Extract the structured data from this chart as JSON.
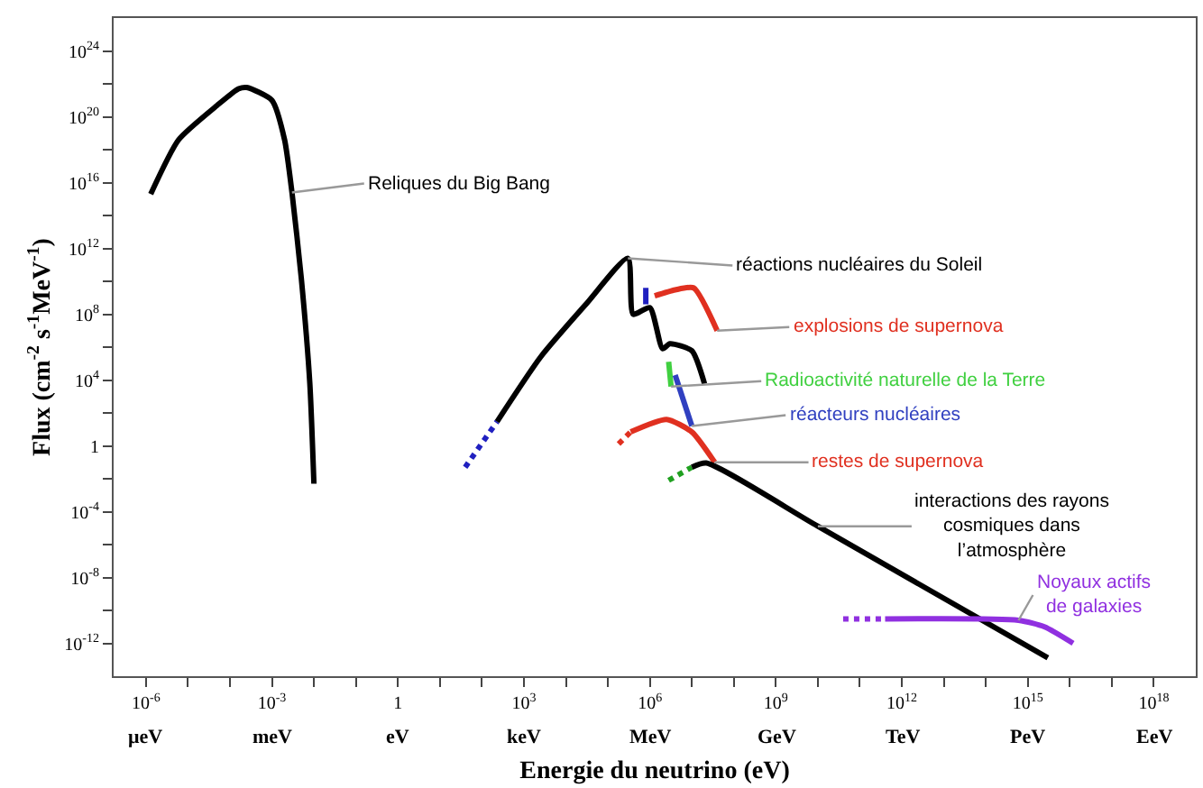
{
  "chart_data": {
    "type": "line",
    "xlabel": "Energie du neutrino (eV)",
    "ylabel": "Flux (cm$^{-2}$ s$^{-1}$MeV$^{-1}$)",
    "log": "xy",
    "xlim": [
      1.7e-07,
      1e+19
    ],
    "ylim": [
      1e-14,
      1e+26
    ],
    "xticks": [
      {
        "value": 1e-06,
        "label": "10$^{-6}$"
      },
      {
        "value": 1e-05,
        "label": null
      },
      {
        "value": 0.0001,
        "label": null
      },
      {
        "value": 0.001,
        "label": "10$^{-3}$"
      },
      {
        "value": 0.01,
        "label": null
      },
      {
        "value": 0.1,
        "label": null
      },
      1,
      {
        "value": 10,
        "label": null
      },
      {
        "value": 100,
        "label": null
      },
      {
        "value": 1000.0,
        "label": "10$^{3}$"
      },
      {
        "value": 10000.0,
        "label": null
      },
      {
        "value": 100000.0,
        "label": null
      },
      {
        "value": 1000000.0,
        "label": "10$^{6}$"
      },
      {
        "value": 10000000.0,
        "label": null
      },
      {
        "value": 100000000.0,
        "label": null
      },
      {
        "value": 1000000000.0,
        "label": "10$^{9}$"
      },
      {
        "value": 10000000000.0,
        "label": null
      },
      {
        "value": 100000000000.0,
        "label": null
      },
      {
        "value": 1000000000000.0,
        "label": "10$^{12}$"
      },
      {
        "value": 10000000000000.0,
        "label": null
      },
      {
        "value": 100000000000000.0,
        "label": null
      },
      {
        "value": 1000000000000000.0,
        "label": "10$^{15}$"
      },
      {
        "value": 1e+16,
        "label": null
      },
      {
        "value": 1e+17,
        "label": null
      },
      {
        "value": 1e+18,
        "label": "10$^{18}$"
      }
    ],
    "annotations": [
      "μeV",
      "meV",
      "eV",
      "keV",
      "MeV",
      "GeV",
      "TeV",
      "PeV",
      "EeV"
    ],
    "yticks": [
      {
        "value": 1e-12,
        "label": "10$^{-12}$"
      },
      {
        "value": 1e-10,
        "label": null
      },
      {
        "value": 1e-08,
        "label": "10$^{-8}$"
      },
      {
        "value": 1e-06,
        "label": null
      },
      {
        "value": 0.0001,
        "label": "10$^{-4}$"
      },
      {
        "value": 0.01,
        "label": null
      },
      {
        "value": 1,
        "label": "1"
      },
      {
        "value": 100,
        "label": null
      },
      {
        "value": 10000.0,
        "label": "10$^{4}$"
      },
      {
        "value": 1000000.0,
        "label": null
      },
      {
        "value": 100000000.0,
        "label": "10$^{8}$"
      },
      {
        "value": 10000000000.0,
        "label": null
      },
      {
        "value": 1000000000000.0,
        "label": "10$^{12}$"
      },
      {
        "value": 100000000000000.0,
        "label": null
      },
      {
        "value": 1e+16,
        "label": "10$^{16}$"
      },
      {
        "value": 1e+18,
        "label": null
      },
      {
        "value": 1e+20,
        "label": "10$^{20}$"
      },
      {
        "value": 1e+22,
        "label": null
      },
      {
        "value": 1e+24,
        "label": "10$^{24}$"
      }
    ],
    "series": [
      {
        "name": "Reliques du Big Bang",
        "color": "#000000",
        "line_style": "solid",
        "x": [
          1.3e-06,
          6e-06,
          5e-05,
          0.00016,
          0.00025,
          0.001,
          0.002,
          0.003,
          0.005,
          0.008,
          0.01
        ],
        "values": [
          2000000000000000.0,
          4e+18,
          5e+20,
          5e+21,
          6e+21,
          1e+21,
          4e+18,
          2500000000000000.0,
          16000000000.0,
          6000.0,
          0.005
        ]
      },
      {
        "color": "#2020c0",
        "line_style": "dotted",
        "x": [
          40,
          230
        ],
        "values": [
          0.05,
          30
        ]
      },
      {
        "name": "réactions nucléaires du Soleil",
        "color": "#000000",
        "line_style": "solid",
        "x": [
          230,
          2500.0,
          30000.0,
          300000.0,
          400000.0,
          1000000.0,
          2000000.0,
          3000000.0,
          10000000.0,
          20000000.0
        ],
        "values": [
          30,
          250000.0,
          400000000.0,
          250000000000.0,
          100000000.0,
          250000000.0,
          800000.0,
          1600000.0,
          600000.0,
          6000.0
        ]
      },
      {
        "color": "#2020c0",
        "line_style": "solid",
        "x": [
          800000.0,
          800000.0
        ],
        "values": [
          4000000000.0,
          400000000.0
        ]
      },
      {
        "name": "explosions de supernova",
        "color": "#e03020",
        "line_style": "solid",
        "x": [
          1300000.0,
          4000000.0,
          11000000.0,
          40000000.0
        ],
        "values": [
          1300000000.0,
          3000000000.0,
          4000000000.0,
          10000000.0
        ]
      },
      {
        "name": "Radioactivité naturelle de la Terre",
        "color": "#40d040",
        "line_style": "solid",
        "x": [
          2800000.0,
          3200000.0
        ],
        "values": [
          130000.0,
          4000.0
        ]
      },
      {
        "name": "réacteurs nucléaires",
        "color": "#3040c0",
        "line_style": "solid",
        "x": [
          4000000.0,
          10000000.0
        ],
        "values": [
          20000.0,
          16
        ]
      },
      {
        "color": "#e03020",
        "line_style": "dotted",
        "x": [
          180000.0,
          350000.0
        ],
        "values": [
          1.3,
          7
        ]
      },
      {
        "name": "restes de supernova",
        "color": "#e03020",
        "line_style": "solid",
        "x": [
          350000.0,
          2500000.0,
          10000000.0,
          35000000.0
        ],
        "values": [
          7,
          40,
          7,
          0.1
        ]
      },
      {
        "color": "#20a020",
        "line_style": "dotted",
        "x": [
          2800000.0,
          10000000.0
        ],
        "values": [
          0.008,
          0.05
        ]
      },
      {
        "name": "interactions des rayons\ncosmiques dans\nl’atmosphère",
        "color": "#000000",
        "line_style": "solid",
        "x": [
          10000000.0,
          22000000.0,
          10000000000.0,
          3000000000000000.0
        ],
        "values": [
          0.05,
          0.09,
          1.3e-05,
          1.3e-13
        ]
      },
      {
        "color": "#9030e0",
        "line_style": "dotted",
        "x": [
          40000000000.0,
          400000000000.0
        ],
        "values": [
          3e-11,
          3e-11
        ]
      },
      {
        "name": "Noyaux actifs\nde galaxies",
        "color": "#9030e0",
        "line_style": "solid",
        "x": [
          400000000000.0,
          600000000000000.0,
          2500000000000000.0,
          1.2e+16
        ],
        "values": [
          3e-11,
          2.5e-11,
          1e-11,
          1e-12
        ]
      }
    ]
  }
}
